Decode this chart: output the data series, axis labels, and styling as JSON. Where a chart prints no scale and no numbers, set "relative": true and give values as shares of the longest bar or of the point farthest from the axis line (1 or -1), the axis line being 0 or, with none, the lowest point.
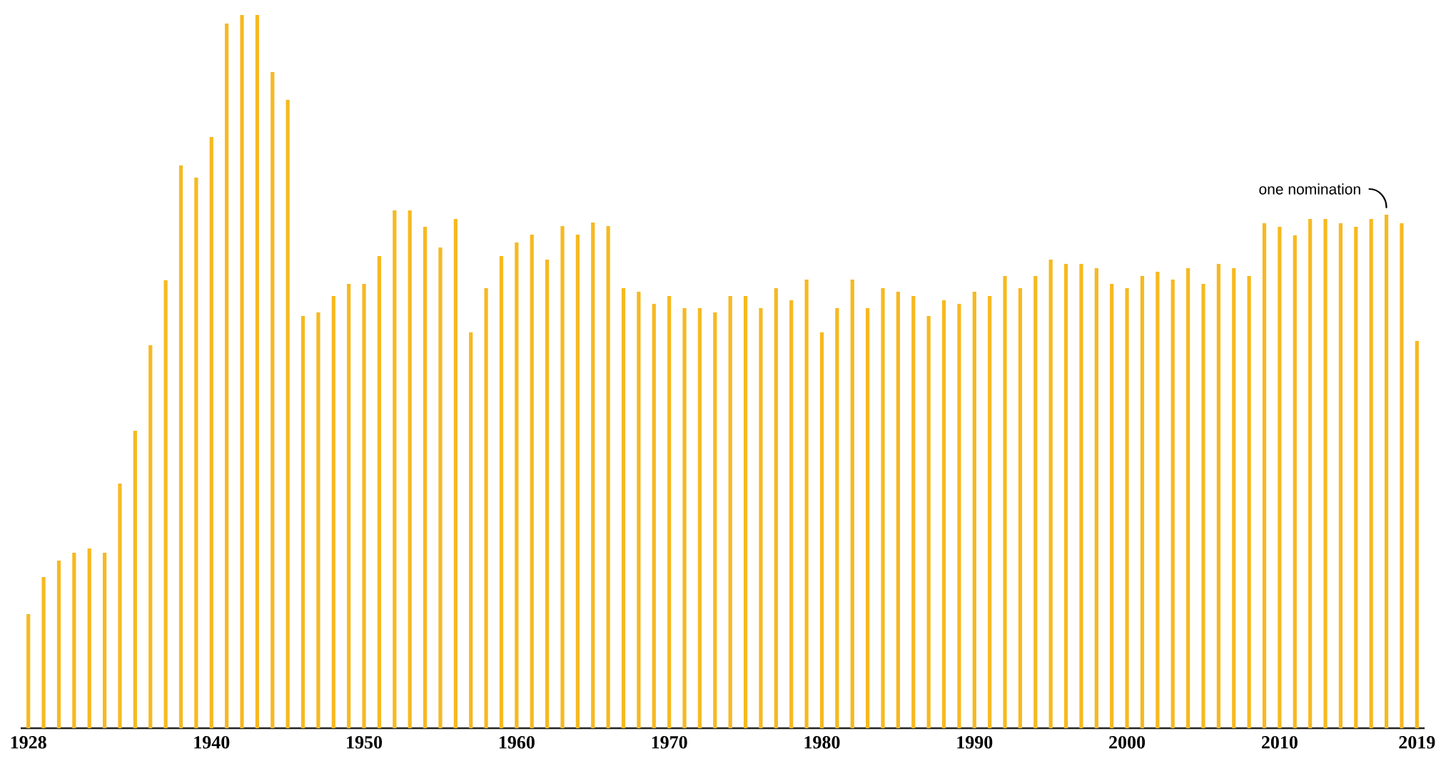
{
  "chart_data": {
    "type": "bar",
    "relative": true,
    "color": "#f6b921",
    "x": [
      1928,
      1929,
      1930,
      1931,
      1932,
      1933,
      1934,
      1935,
      1936,
      1937,
      1938,
      1939,
      1940,
      1941,
      1942,
      1943,
      1944,
      1945,
      1946,
      1947,
      1948,
      1949,
      1950,
      1951,
      1952,
      1953,
      1954,
      1955,
      1956,
      1957,
      1958,
      1959,
      1960,
      1961,
      1962,
      1963,
      1964,
      1965,
      1966,
      1967,
      1968,
      1969,
      1970,
      1971,
      1972,
      1973,
      1974,
      1975,
      1976,
      1977,
      1978,
      1979,
      1980,
      1981,
      1982,
      1983,
      1984,
      1985,
      1986,
      1987,
      1988,
      1989,
      1990,
      1991,
      1992,
      1993,
      1994,
      1995,
      1996,
      1997,
      1998,
      1999,
      2000,
      2001,
      2002,
      2003,
      2004,
      2005,
      2006,
      2007,
      2008,
      2009,
      2010,
      2011,
      2012,
      2013,
      2014,
      2015,
      2016,
      2017,
      2018,
      2019
    ],
    "values": [
      0.16,
      0.212,
      0.235,
      0.246,
      0.252,
      0.246,
      0.343,
      0.417,
      0.537,
      0.628,
      0.789,
      0.772,
      0.829,
      0.988,
      1,
      1,
      0.92,
      0.881,
      0.578,
      0.583,
      0.606,
      0.623,
      0.623,
      0.662,
      0.726,
      0.726,
      0.703,
      0.674,
      0.714,
      0.555,
      0.617,
      0.662,
      0.681,
      0.692,
      0.657,
      0.704,
      0.692,
      0.709,
      0.704,
      0.617,
      0.612,
      0.595,
      0.606,
      0.589,
      0.589,
      0.583,
      0.606,
      0.606,
      0.589,
      0.617,
      0.6,
      0.629,
      0.555,
      0.589,
      0.629,
      0.589,
      0.617,
      0.612,
      0.606,
      0.578,
      0.6,
      0.595,
      0.612,
      0.606,
      0.634,
      0.617,
      0.634,
      0.657,
      0.651,
      0.651,
      0.645,
      0.623,
      0.617,
      0.634,
      0.64,
      0.629,
      0.645,
      0.623,
      0.651,
      0.645,
      0.634,
      0.708,
      0.703,
      0.691,
      0.714,
      0.714,
      0.708,
      0.703,
      0.714,
      0.72,
      0.708,
      0.543
    ],
    "xlim": [
      1927.5,
      2019.5
    ],
    "xticks": [
      1928,
      1940,
      1950,
      1960,
      1970,
      1980,
      1990,
      2000,
      2010,
      2019
    ],
    "annotations": [
      {
        "text": "one nomination",
        "x": 2017,
        "y": 0.72
      }
    ]
  }
}
